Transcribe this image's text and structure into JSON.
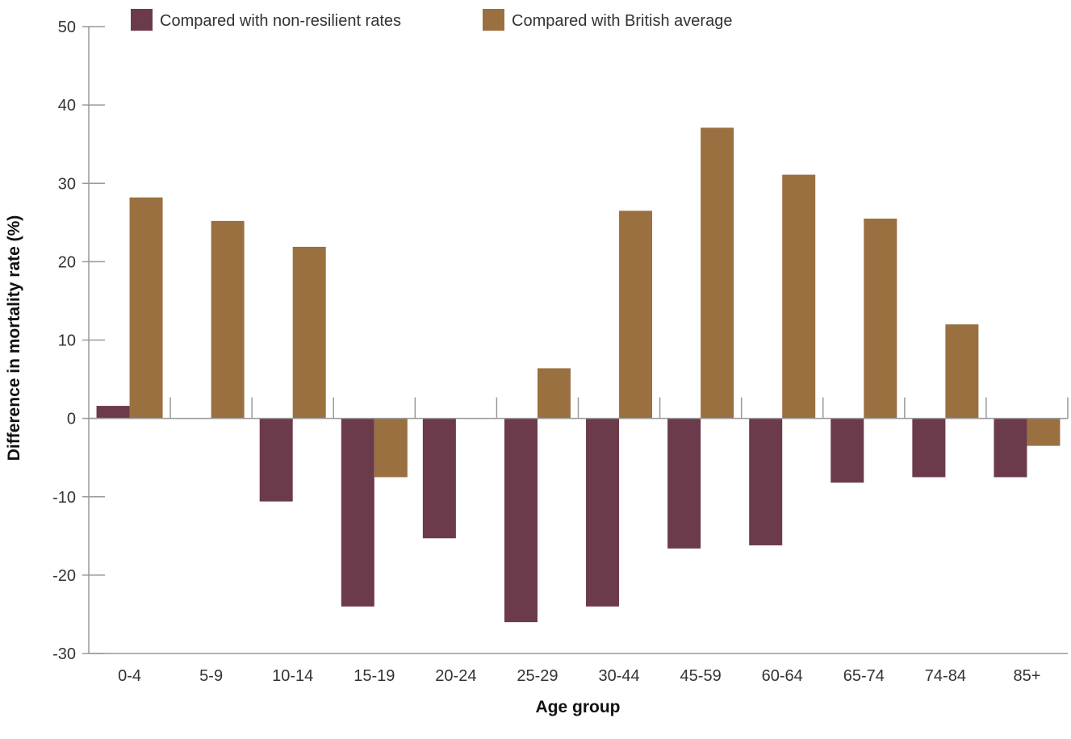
{
  "chart_data": {
    "type": "bar",
    "title": "",
    "xlabel": "Age group",
    "ylabel": "Difference in mortality rate (%)",
    "ylim": [
      -30,
      50
    ],
    "yticks": [
      50,
      40,
      30,
      20,
      10,
      0,
      -10,
      -20,
      -30
    ],
    "grid": false,
    "legend_position": "top",
    "categories": [
      "0-4",
      "5-9",
      "10-14",
      "15-19",
      "20-24",
      "25-29",
      "30-44",
      "45-59",
      "60-64",
      "65-74",
      "74-84",
      "85+"
    ],
    "series": [
      {
        "name": "Compared with non-resilient rates",
        "color": "#6b3a4b",
        "values": [
          1.6,
          0,
          -10.6,
          -24,
          -15.3,
          -26,
          -24,
          -16.6,
          -16.2,
          -8.2,
          -7.5,
          -7.5
        ]
      },
      {
        "name": "Compared with British average",
        "color": "#9a7040",
        "values": [
          28.2,
          25.2,
          21.9,
          -7.5,
          0,
          6.4,
          26.5,
          37.1,
          31.1,
          25.5,
          12,
          -3.5
        ]
      }
    ]
  }
}
